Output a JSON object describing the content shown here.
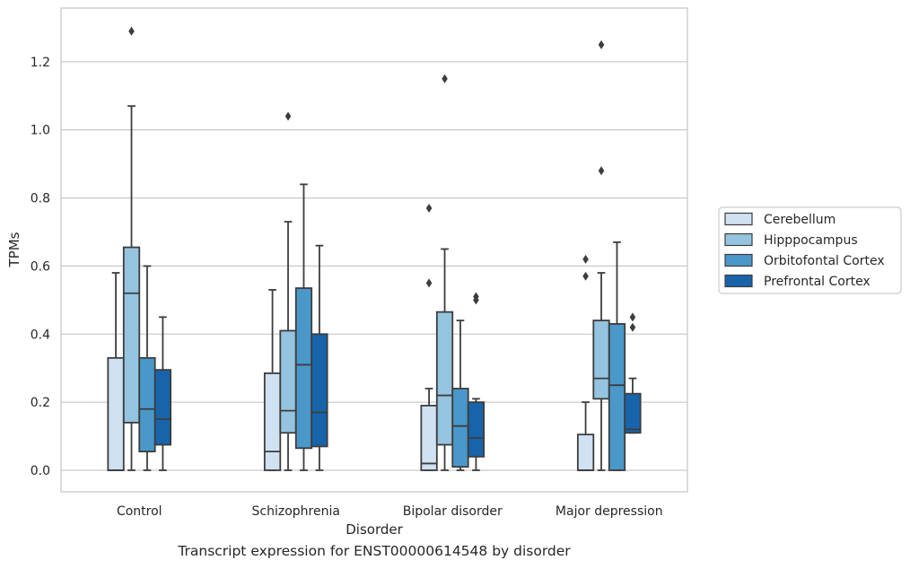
{
  "caption": "Transcript expression for ENST00000614548 by disorder",
  "chart_data": {
    "type": "box",
    "xlabel": "Disorder",
    "ylabel": "TPMs",
    "ylim": [
      -0.065,
      1.36
    ],
    "yticks": [
      "0.0",
      "0.2",
      "0.4",
      "0.6",
      "0.8",
      "1.0",
      "1.2"
    ],
    "grid": "horizontal",
    "legend_position": "right",
    "categories": [
      "Control",
      "Schizophrenia",
      "Bipolar disorder",
      "Major depression"
    ],
    "series": [
      {
        "name": "Cerebellum",
        "color": "#d0e1f2",
        "boxes": [
          {
            "whislo": 0.0,
            "q1": 0.0,
            "med": 0.0,
            "q3": 0.33,
            "whishi": 0.58,
            "fliers": []
          },
          {
            "whislo": 0.0,
            "q1": 0.0,
            "med": 0.055,
            "q3": 0.285,
            "whishi": 0.53,
            "fliers": []
          },
          {
            "whislo": 0.0,
            "q1": 0.0,
            "med": 0.02,
            "q3": 0.19,
            "whishi": 0.24,
            "fliers": [
              0.55,
              0.77
            ]
          },
          {
            "whislo": 0.0,
            "q1": 0.0,
            "med": 0.0,
            "q3": 0.105,
            "whishi": 0.2,
            "fliers": [
              0.57,
              0.62
            ]
          }
        ]
      },
      {
        "name": "Hipppocampus",
        "color": "#94c4df",
        "boxes": [
          {
            "whislo": 0.0,
            "q1": 0.14,
            "med": 0.52,
            "q3": 0.655,
            "whishi": 1.07,
            "fliers": [
              1.29
            ]
          },
          {
            "whislo": 0.0,
            "q1": 0.11,
            "med": 0.175,
            "q3": 0.41,
            "whishi": 0.73,
            "fliers": [
              1.04
            ]
          },
          {
            "whislo": 0.0,
            "q1": 0.075,
            "med": 0.22,
            "q3": 0.465,
            "whishi": 0.65,
            "fliers": [
              1.15
            ]
          },
          {
            "whislo": 0.0,
            "q1": 0.21,
            "med": 0.27,
            "q3": 0.44,
            "whishi": 0.58,
            "fliers": [
              0.88,
              1.25
            ]
          }
        ]
      },
      {
        "name": "Orbitofontal Cortex",
        "color": "#4a98c9",
        "boxes": [
          {
            "whislo": 0.0,
            "q1": 0.055,
            "med": 0.18,
            "q3": 0.33,
            "whishi": 0.6,
            "fliers": []
          },
          {
            "whislo": 0.0,
            "q1": 0.065,
            "med": 0.31,
            "q3": 0.535,
            "whishi": 0.84,
            "fliers": []
          },
          {
            "whislo": 0.0,
            "q1": 0.01,
            "med": 0.13,
            "q3": 0.24,
            "whishi": 0.44,
            "fliers": []
          },
          {
            "whislo": 0.0,
            "q1": 0.0,
            "med": 0.25,
            "q3": 0.43,
            "whishi": 0.67,
            "fliers": []
          }
        ]
      },
      {
        "name": "Prefrontal Cortex",
        "color": "#1764ab",
        "boxes": [
          {
            "whislo": 0.0,
            "q1": 0.075,
            "med": 0.15,
            "q3": 0.295,
            "whishi": 0.45,
            "fliers": []
          },
          {
            "whislo": 0.0,
            "q1": 0.07,
            "med": 0.17,
            "q3": 0.4,
            "whishi": 0.66,
            "fliers": []
          },
          {
            "whislo": 0.0,
            "q1": 0.04,
            "med": 0.095,
            "q3": 0.2,
            "whishi": 0.21,
            "fliers": [
              0.5,
              0.51
            ]
          },
          {
            "whislo": 0.11,
            "q1": 0.11,
            "med": 0.12,
            "q3": 0.225,
            "whishi": 0.27,
            "fliers": [
              0.42,
              0.45
            ]
          }
        ]
      }
    ]
  }
}
